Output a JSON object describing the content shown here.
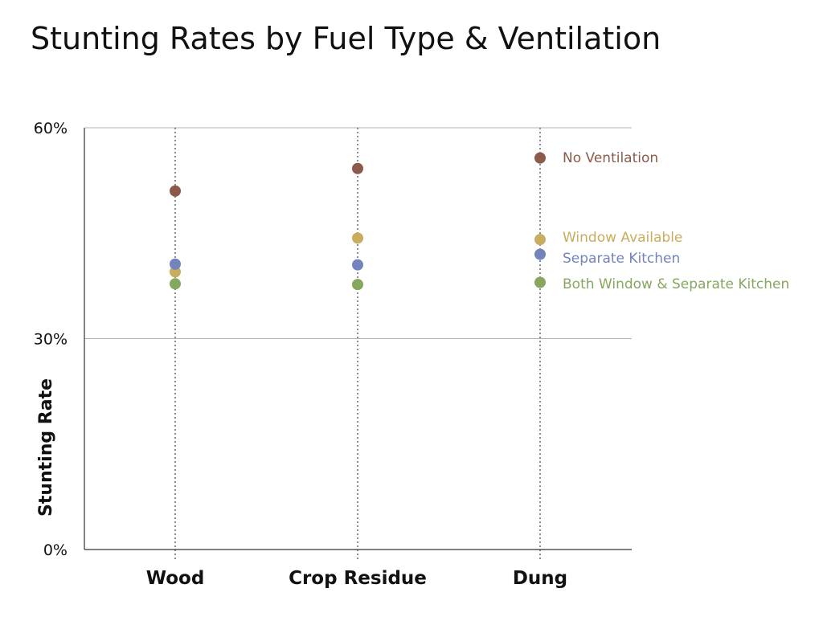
{
  "chart_data": {
    "type": "scatter",
    "title": "Stunting Rates by Fuel Type & Ventilation",
    "xlabel": "",
    "ylabel": "Stunting Rate",
    "categories": [
      "Wood",
      "Crop Residue",
      "Dung"
    ],
    "ylim": [
      0,
      60
    ],
    "yticks": [
      {
        "value": 0,
        "label": "0%"
      },
      {
        "value": 30,
        "label": "30%"
      },
      {
        "value": 60,
        "label": "60%"
      }
    ],
    "grid": true,
    "legend": "right",
    "series": [
      {
        "name": "No Ventilation",
        "color": "#8b5a4a",
        "values": [
          51,
          54.2,
          55.7
        ]
      },
      {
        "name": "Window Available",
        "color": "#c9ad5e",
        "values": [
          39.5,
          44.3,
          44.1
        ]
      },
      {
        "name": "Separate Kitchen",
        "color": "#7383bd",
        "values": [
          40.6,
          40.5,
          42
        ]
      },
      {
        "name": "Both Window & Separate Kitchen",
        "color": "#86a75e",
        "values": [
          37.8,
          37.7,
          38
        ]
      }
    ]
  }
}
